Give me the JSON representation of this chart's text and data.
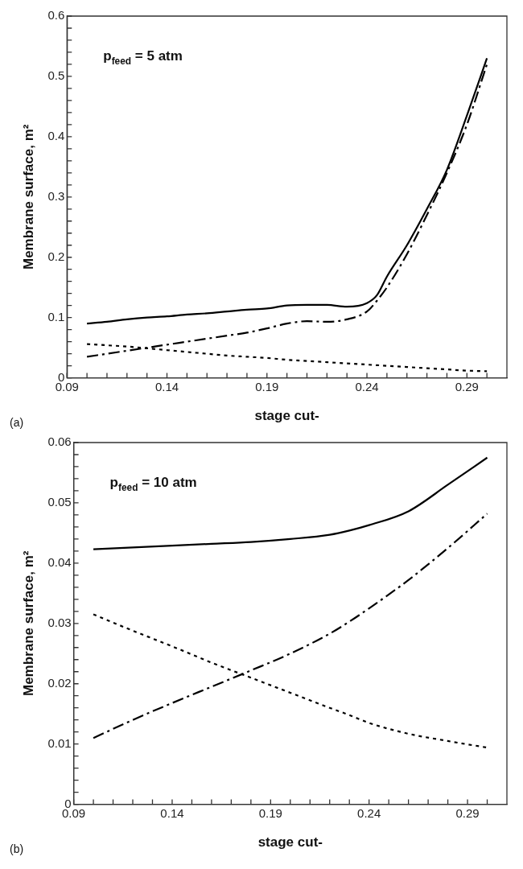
{
  "chart_data": [
    {
      "type": "line",
      "xlabel": "stage cut-",
      "ylabel": "Membrane surface, m²",
      "annotations": [
        "p$_{feed}$ = 5 atm",
        "(a)"
      ],
      "x": [
        0.1,
        0.11,
        0.12,
        0.13,
        0.14,
        0.15,
        0.16,
        0.17,
        0.18,
        0.19,
        0.2,
        0.21,
        0.22,
        0.23,
        0.24,
        0.245,
        0.25,
        0.26,
        0.27,
        0.28,
        0.29,
        0.3
      ],
      "series": [
        {
          "color": "#000000",
          "line_style": "solid",
          "values": [
            0.09,
            0.093,
            0.097,
            0.1,
            0.102,
            0.105,
            0.107,
            0.11,
            0.113,
            0.115,
            0.12,
            0.121,
            0.121,
            0.118,
            0.124,
            0.137,
            0.168,
            0.22,
            0.28,
            0.345,
            0.435,
            0.53
          ]
        },
        {
          "color": "#000000",
          "line_style": "dashed",
          "values": [
            0.035,
            0.04,
            0.045,
            0.05,
            0.055,
            0.06,
            0.065,
            0.07,
            0.075,
            0.082,
            0.09,
            0.094,
            0.093,
            0.097,
            0.11,
            0.128,
            0.15,
            0.205,
            0.27,
            0.34,
            0.42,
            0.52
          ]
        },
        {
          "color": "#000000",
          "line_style": "dotted",
          "values": [
            0.056,
            0.054,
            0.052,
            0.049,
            0.046,
            0.043,
            0.04,
            0.037,
            0.035,
            0.033,
            0.03,
            0.028,
            0.026,
            0.024,
            0.022,
            0.021,
            0.02,
            0.018,
            0.016,
            0.014,
            0.012,
            0.011
          ]
        }
      ],
      "xlim": [
        0.09,
        0.31
      ],
      "xticks": [
        0.09,
        {
          "value": 0.1,
          "label": null
        },
        {
          "value": 0.11,
          "label": null
        },
        {
          "value": 0.12,
          "label": null
        },
        {
          "value": 0.13,
          "label": null
        },
        0.14,
        {
          "value": 0.15,
          "label": null
        },
        {
          "value": 0.16,
          "label": null
        },
        {
          "value": 0.17,
          "label": null
        },
        {
          "value": 0.18,
          "label": null
        },
        0.19,
        {
          "value": 0.2,
          "label": null
        },
        {
          "value": 0.21,
          "label": null
        },
        {
          "value": 0.22,
          "label": null
        },
        {
          "value": 0.23,
          "label": null
        },
        0.24,
        {
          "value": 0.25,
          "label": null
        },
        {
          "value": 0.26,
          "label": null
        },
        {
          "value": 0.27,
          "label": null
        },
        {
          "value": 0.28,
          "label": null
        },
        0.29,
        {
          "value": 0.3,
          "label": null
        }
      ],
      "ylim": [
        0,
        0.6
      ],
      "yticks": [
        0,
        {
          "value": 0.02,
          "label": null
        },
        {
          "value": 0.04,
          "label": null
        },
        {
          "value": 0.06,
          "label": null
        },
        {
          "value": 0.08,
          "label": null
        },
        0.1,
        {
          "value": 0.12,
          "label": null
        },
        {
          "value": 0.14,
          "label": null
        },
        {
          "value": 0.16,
          "label": null
        },
        {
          "value": 0.18,
          "label": null
        },
        0.2,
        {
          "value": 0.22,
          "label": null
        },
        {
          "value": 0.24,
          "label": null
        },
        {
          "value": 0.26,
          "label": null
        },
        {
          "value": 0.28,
          "label": null
        },
        0.3,
        {
          "value": 0.32,
          "label": null
        },
        {
          "value": 0.34,
          "label": null
        },
        {
          "value": 0.36,
          "label": null
        },
        {
          "value": 0.38,
          "label": null
        },
        0.4,
        {
          "value": 0.42,
          "label": null
        },
        {
          "value": 0.44,
          "label": null
        },
        {
          "value": 0.46,
          "label": null
        },
        {
          "value": 0.48,
          "label": null
        },
        0.5,
        {
          "value": 0.52,
          "label": null
        },
        {
          "value": 0.54,
          "label": null
        },
        {
          "value": 0.56,
          "label": null
        },
        {
          "value": 0.58,
          "label": null
        },
        0.6
      ],
      "grid": false,
      "legend": false,
      "marker": "none"
    },
    {
      "type": "line",
      "xlabel": "stage cut-",
      "ylabel": "Membrane surface, m²",
      "annotations": [
        "p$_{feed}$ = 10 atm",
        "(b)"
      ],
      "x": [
        0.1,
        0.12,
        0.14,
        0.16,
        0.18,
        0.2,
        0.22,
        0.23,
        0.24,
        0.26,
        0.28,
        0.3
      ],
      "series": [
        {
          "color": "#000000",
          "line_style": "solid",
          "values": [
            0.0423,
            0.0426,
            0.0429,
            0.0432,
            0.0435,
            0.044,
            0.0447,
            0.0454,
            0.0463,
            0.0486,
            0.053,
            0.0575
          ]
        },
        {
          "color": "#000000",
          "line_style": "dashed",
          "values": [
            0.011,
            0.014,
            0.0168,
            0.0195,
            0.0222,
            0.025,
            0.0283,
            0.0303,
            0.0325,
            0.0372,
            0.0425,
            0.0482
          ]
        },
        {
          "color": "#000000",
          "line_style": "dotted",
          "values": [
            0.0315,
            0.0288,
            0.0262,
            0.0235,
            0.021,
            0.0185,
            0.016,
            0.0148,
            0.0135,
            0.0117,
            0.0105,
            0.0094
          ]
        }
      ],
      "xlim": [
        0.09,
        0.31
      ],
      "xticks": [
        0.09,
        {
          "value": 0.1,
          "label": null
        },
        {
          "value": 0.11,
          "label": null
        },
        {
          "value": 0.12,
          "label": null
        },
        {
          "value": 0.13,
          "label": null
        },
        0.14,
        {
          "value": 0.15,
          "label": null
        },
        {
          "value": 0.16,
          "label": null
        },
        {
          "value": 0.17,
          "label": null
        },
        {
          "value": 0.18,
          "label": null
        },
        0.19,
        {
          "value": 0.2,
          "label": null
        },
        {
          "value": 0.21,
          "label": null
        },
        {
          "value": 0.22,
          "label": null
        },
        {
          "value": 0.23,
          "label": null
        },
        0.24,
        {
          "value": 0.25,
          "label": null
        },
        {
          "value": 0.26,
          "label": null
        },
        {
          "value": 0.27,
          "label": null
        },
        {
          "value": 0.28,
          "label": null
        },
        0.29,
        {
          "value": 0.3,
          "label": null
        }
      ],
      "ylim": [
        0,
        0.06
      ],
      "yticks": [
        0,
        {
          "value": 0.002,
          "label": null
        },
        {
          "value": 0.004,
          "label": null
        },
        {
          "value": 0.006,
          "label": null
        },
        {
          "value": 0.008,
          "label": null
        },
        0.01,
        {
          "value": 0.012,
          "label": null
        },
        {
          "value": 0.014,
          "label": null
        },
        {
          "value": 0.016,
          "label": null
        },
        {
          "value": 0.018,
          "label": null
        },
        0.02,
        {
          "value": 0.022,
          "label": null
        },
        {
          "value": 0.024,
          "label": null
        },
        {
          "value": 0.026,
          "label": null
        },
        {
          "value": 0.028,
          "label": null
        },
        0.03,
        {
          "value": 0.032,
          "label": null
        },
        {
          "value": 0.034,
          "label": null
        },
        {
          "value": 0.036,
          "label": null
        },
        {
          "value": 0.038,
          "label": null
        },
        0.04,
        {
          "value": 0.042,
          "label": null
        },
        {
          "value": 0.044,
          "label": null
        },
        {
          "value": 0.046,
          "label": null
        },
        {
          "value": 0.048,
          "label": null
        },
        0.05,
        {
          "value": 0.052,
          "label": null
        },
        {
          "value": 0.054,
          "label": null
        },
        {
          "value": 0.056,
          "label": null
        },
        {
          "value": 0.058,
          "label": null
        },
        0.06
      ],
      "grid": false,
      "legend": false,
      "marker": "none"
    }
  ]
}
